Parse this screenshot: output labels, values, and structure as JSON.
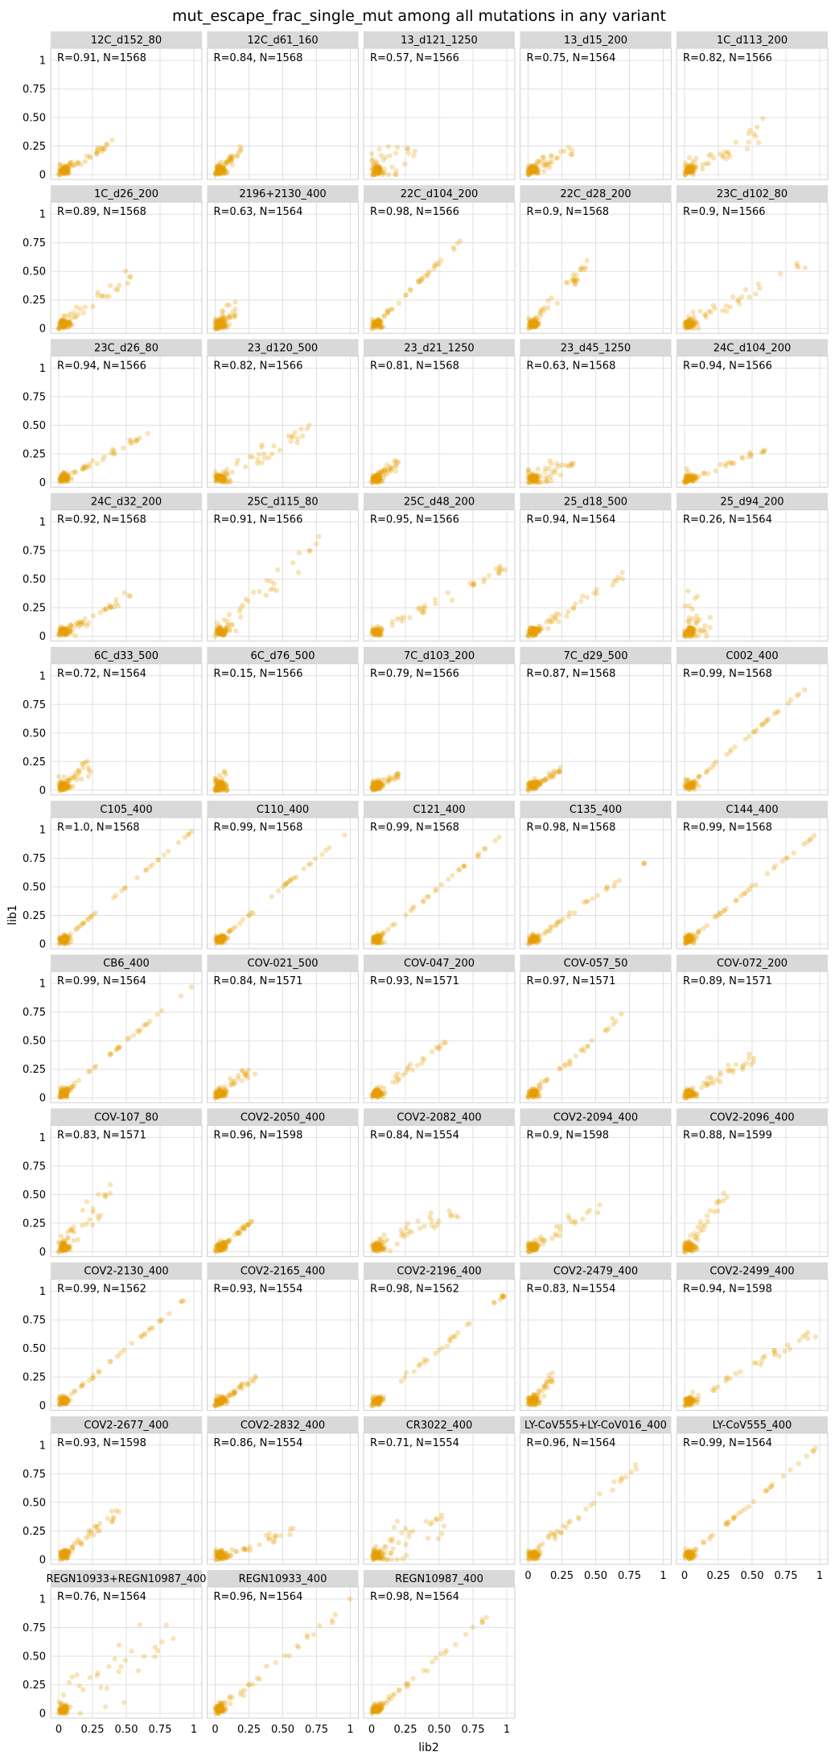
{
  "figure": {
    "title": "mut_escape_frac_single_mut among all mutations in any variant",
    "xlabel": "lib2",
    "ylabel": "lib1"
  },
  "colors": {
    "point": "#E69F00",
    "strip": "#d9d9d9",
    "grid": "#e0e0e0",
    "frame": "#cfcfcf",
    "background": "#ffffff"
  },
  "chart_data": {
    "type": "scatter",
    "layout": "facet grid, 5 columns, 11 rows",
    "xlim": [
      0,
      1
    ],
    "ylim": [
      0,
      1
    ],
    "ticks": [
      0,
      0.25,
      0.5,
      0.75,
      1
    ],
    "tick_labels": [
      "0",
      "0.25",
      "0.50",
      "0.75",
      "1"
    ],
    "grid": true,
    "facets": [
      {
        "name": "12C_d152_80",
        "label": "R=0.91, N=1568",
        "r": 0.91,
        "n": 1568,
        "max_x": 0.4,
        "max_y": 0.3
      },
      {
        "name": "12C_d61_160",
        "label": "R=0.84, N=1568",
        "r": 0.84,
        "n": 1568,
        "max_x": 0.2,
        "max_y": 0.25
      },
      {
        "name": "13_d121_1250",
        "label": "R=0.57, N=1566",
        "r": 0.57,
        "n": 1566,
        "max_x": 0.35,
        "max_y": 0.3
      },
      {
        "name": "13_d15_200",
        "label": "R=0.75, N=1564",
        "r": 0.75,
        "n": 1564,
        "max_x": 0.35,
        "max_y": 0.3
      },
      {
        "name": "1C_d113_200",
        "label": "R=0.82, N=1566",
        "r": 0.82,
        "n": 1566,
        "max_x": 0.6,
        "max_y": 0.45
      },
      {
        "name": "1C_d26_200",
        "label": "R=0.89, N=1568",
        "r": 0.89,
        "n": 1568,
        "max_x": 0.55,
        "max_y": 0.5
      },
      {
        "name": "2196+2130_400",
        "label": "R=0.63, N=1564",
        "r": 0.63,
        "n": 1564,
        "max_x": 0.15,
        "max_y": 0.2
      },
      {
        "name": "22C_d104_200",
        "label": "R=0.98, N=1566",
        "r": 0.98,
        "n": 1566,
        "max_x": 0.7,
        "max_y": 0.82
      },
      {
        "name": "22C_d28_200",
        "label": "R=0.9, N=1568",
        "r": 0.9,
        "n": 1568,
        "max_x": 0.45,
        "max_y": 0.6
      },
      {
        "name": "23C_d102_80",
        "label": "R=0.9, N=1566",
        "r": 0.9,
        "n": 1566,
        "max_x": 0.95,
        "max_y": 0.62
      },
      {
        "name": "23C_d26_80",
        "label": "R=0.94, N=1566",
        "r": 0.94,
        "n": 1566,
        "max_x": 0.7,
        "max_y": 0.48
      },
      {
        "name": "23_d120_500",
        "label": "R=0.82, N=1566",
        "r": 0.82,
        "n": 1566,
        "max_x": 0.75,
        "max_y": 0.55
      },
      {
        "name": "23_d21_1250",
        "label": "R=0.81, N=1568",
        "r": 0.81,
        "n": 1568,
        "max_x": 0.2,
        "max_y": 0.2
      },
      {
        "name": "23_d45_1250",
        "label": "R=0.63, N=1568",
        "r": 0.63,
        "n": 1568,
        "max_x": 0.35,
        "max_y": 0.25
      },
      {
        "name": "24C_d104_200",
        "label": "R=0.94, N=1566",
        "r": 0.94,
        "n": 1566,
        "max_x": 0.6,
        "max_y": 0.3
      },
      {
        "name": "24C_d32_200",
        "label": "R=0.92, N=1568",
        "r": 0.92,
        "n": 1568,
        "max_x": 0.55,
        "max_y": 0.4
      },
      {
        "name": "25C_d115_80",
        "label": "R=0.91, N=1566",
        "r": 0.91,
        "n": 1566,
        "max_x": 0.8,
        "max_y": 0.92
      },
      {
        "name": "25C_d48_200",
        "label": "R=0.95, N=1566",
        "r": 0.95,
        "n": 1566,
        "max_x": 1.0,
        "max_y": 0.62
      },
      {
        "name": "25_d18_500",
        "label": "R=0.94, N=1564",
        "r": 0.94,
        "n": 1564,
        "max_x": 0.7,
        "max_y": 0.55
      },
      {
        "name": "25_d94_200",
        "label": "R=0.26, N=1564",
        "r": 0.26,
        "n": 1564,
        "max_x": 0.2,
        "max_y": 0.3
      },
      {
        "name": "6C_d33_500",
        "label": "R=0.72, N=1564",
        "r": 0.72,
        "n": 1564,
        "max_x": 0.25,
        "max_y": 0.28
      },
      {
        "name": "6C_d76_500",
        "label": "R=0.15, N=1566",
        "r": 0.15,
        "n": 1566,
        "max_x": 0.1,
        "max_y": 0.06
      },
      {
        "name": "7C_d103_200",
        "label": "R=0.79, N=1566",
        "r": 0.79,
        "n": 1566,
        "max_x": 0.2,
        "max_y": 0.15
      },
      {
        "name": "7C_d29_500",
        "label": "R=0.87, N=1568",
        "r": 0.87,
        "n": 1568,
        "max_x": 0.25,
        "max_y": 0.2
      },
      {
        "name": "C002_400",
        "label": "R=0.99, N=1568",
        "r": 0.99,
        "n": 1568,
        "max_x": 1.0,
        "max_y": 1.0
      },
      {
        "name": "C105_400",
        "label": "R=1.0, N=1568",
        "r": 1.0,
        "n": 1568,
        "max_x": 1.0,
        "max_y": 1.0
      },
      {
        "name": "C110_400",
        "label": "R=0.99, N=1568",
        "r": 0.99,
        "n": 1568,
        "max_x": 1.0,
        "max_y": 1.0
      },
      {
        "name": "C121_400",
        "label": "R=0.99, N=1568",
        "r": 0.99,
        "n": 1568,
        "max_x": 1.0,
        "max_y": 1.0
      },
      {
        "name": "C135_400",
        "label": "R=0.98, N=1568",
        "r": 0.98,
        "n": 1568,
        "max_x": 0.9,
        "max_y": 0.75
      },
      {
        "name": "C144_400",
        "label": "R=0.99, N=1568",
        "r": 0.99,
        "n": 1568,
        "max_x": 1.0,
        "max_y": 1.0
      },
      {
        "name": "CB6_400",
        "label": "R=0.99, N=1564",
        "r": 0.99,
        "n": 1564,
        "max_x": 1.0,
        "max_y": 1.0
      },
      {
        "name": "COV-021_500",
        "label": "R=0.84, N=1571",
        "r": 0.84,
        "n": 1571,
        "max_x": 0.3,
        "max_y": 0.3
      },
      {
        "name": "COV-047_200",
        "label": "R=0.93, N=1571",
        "r": 0.93,
        "n": 1571,
        "max_x": 0.55,
        "max_y": 0.5
      },
      {
        "name": "COV-057_50",
        "label": "R=0.97, N=1571",
        "r": 0.97,
        "n": 1571,
        "max_x": 0.7,
        "max_y": 0.75
      },
      {
        "name": "COV-072_200",
        "label": "R=0.89, N=1571",
        "r": 0.89,
        "n": 1571,
        "max_x": 0.55,
        "max_y": 0.4
      },
      {
        "name": "COV-107_80",
        "label": "R=0.83, N=1571",
        "r": 0.83,
        "n": 1571,
        "max_x": 0.4,
        "max_y": 0.58
      },
      {
        "name": "COV2-2050_400",
        "label": "R=0.96, N=1598",
        "r": 0.96,
        "n": 1598,
        "max_x": 0.3,
        "max_y": 0.3
      },
      {
        "name": "COV2-2082_400",
        "label": "R=0.84, N=1554",
        "r": 0.84,
        "n": 1554,
        "max_x": 0.65,
        "max_y": 0.4
      },
      {
        "name": "COV2-2094_400",
        "label": "R=0.9, N=1598",
        "r": 0.9,
        "n": 1598,
        "max_x": 0.55,
        "max_y": 0.45
      },
      {
        "name": "COV2-2096_400",
        "label": "R=0.88, N=1599",
        "r": 0.88,
        "n": 1599,
        "max_x": 0.35,
        "max_y": 0.6
      },
      {
        "name": "COV2-2130_400",
        "label": "R=0.99, N=1562",
        "r": 0.99,
        "n": 1562,
        "max_x": 1.0,
        "max_y": 1.0
      },
      {
        "name": "COV2-2165_400",
        "label": "R=0.93, N=1554",
        "r": 0.93,
        "n": 1554,
        "max_x": 0.3,
        "max_y": 0.25
      },
      {
        "name": "COV2-2196_400",
        "label": "R=0.98, N=1562",
        "r": 0.98,
        "n": 1562,
        "max_x": 1.0,
        "max_y": 1.0
      },
      {
        "name": "COV2-2479_400",
        "label": "R=0.83, N=1554",
        "r": 0.83,
        "n": 1554,
        "max_x": 0.2,
        "max_y": 0.3
      },
      {
        "name": "COV2-2499_400",
        "label": "R=0.94, N=1598",
        "r": 0.94,
        "n": 1598,
        "max_x": 1.0,
        "max_y": 0.7
      },
      {
        "name": "COV2-2677_400",
        "label": "R=0.93, N=1598",
        "r": 0.93,
        "n": 1598,
        "max_x": 0.45,
        "max_y": 0.45
      },
      {
        "name": "COV2-2832_400",
        "label": "R=0.86, N=1554",
        "r": 0.86,
        "n": 1554,
        "max_x": 0.6,
        "max_y": 0.3
      },
      {
        "name": "CR3022_400",
        "label": "R=0.71, N=1554",
        "r": 0.71,
        "n": 1554,
        "max_x": 0.6,
        "max_y": 0.45
      },
      {
        "name": "LY-CoV555+LY-CoV016_400",
        "label": "R=0.96, N=1564",
        "r": 0.96,
        "n": 1564,
        "max_x": 0.8,
        "max_y": 0.85
      },
      {
        "name": "LY-CoV555_400",
        "label": "R=0.99, N=1564",
        "r": 0.99,
        "n": 1564,
        "max_x": 1.0,
        "max_y": 1.0
      },
      {
        "name": "REGN10933+REGN10987_400",
        "label": "R=0.76, N=1564",
        "r": 0.76,
        "n": 1564,
        "max_x": 0.9,
        "max_y": 0.85
      },
      {
        "name": "REGN10933_400",
        "label": "R=0.96, N=1564",
        "r": 0.96,
        "n": 1564,
        "max_x": 1.0,
        "max_y": 1.0
      },
      {
        "name": "REGN10987_400",
        "label": "R=0.98, N=1564",
        "r": 0.98,
        "n": 1564,
        "max_x": 1.0,
        "max_y": 1.0
      }
    ]
  }
}
